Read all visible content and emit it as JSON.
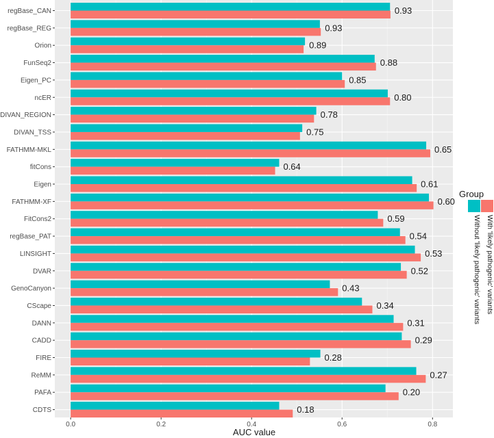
{
  "chart_data": {
    "type": "bar",
    "orientation": "horizontal",
    "title": "",
    "xlabel": "AUC value",
    "ylabel": "",
    "xlim": [
      -0.035,
      0.845
    ],
    "xticks": [
      0.0,
      0.2,
      0.4,
      0.6,
      0.8
    ],
    "xtick_labels": [
      "0.0",
      "0.2",
      "0.4",
      "0.6",
      "0.8"
    ],
    "grid": true,
    "legend": {
      "title": "Group",
      "placement": "right",
      "entries": [
        "Without 'likely pathogenic' variants",
        "With 'likely pathogenic' variants"
      ]
    },
    "series_colors": [
      "#00BFC4",
      "#F8766D"
    ],
    "categories": [
      "regBase_CAN",
      "regBase_REG",
      "Orion",
      "FunSeq2",
      "Eigen_PC",
      "ncER",
      "DIVAN_REGION",
      "DIVAN_TSS",
      "FATHMM-MKL",
      "fitCons",
      "Eigen",
      "FATHMM-XF",
      "FitCons2",
      "regBase_PAT",
      "LINSIGHT",
      "DVAR",
      "GenoCanyon",
      "CScape",
      "DANN",
      "CADD",
      "FIRE",
      "ReMM",
      "PAFA",
      "CDTS"
    ],
    "series": [
      {
        "name": "Without 'likely pathogenic' variants",
        "values": [
          0.706,
          0.551,
          0.518,
          0.672,
          0.6,
          0.701,
          0.543,
          0.512,
          0.786,
          0.461,
          0.755,
          0.792,
          0.679,
          0.728,
          0.761,
          0.73,
          0.573,
          0.644,
          0.714,
          0.732,
          0.552,
          0.764,
          0.696,
          0.461
        ]
      },
      {
        "name": "With 'likely pathogenic' variants",
        "values": [
          0.707,
          0.553,
          0.515,
          0.675,
          0.606,
          0.706,
          0.538,
          0.507,
          0.795,
          0.452,
          0.765,
          0.802,
          0.691,
          0.74,
          0.774,
          0.743,
          0.591,
          0.667,
          0.735,
          0.752,
          0.529,
          0.785,
          0.725,
          0.491
        ]
      }
    ],
    "annotations": [
      "0.93",
      "0.93",
      "0.89",
      "0.88",
      "0.85",
      "0.80",
      "0.78",
      "0.75",
      "0.65",
      "0.64",
      "0.61",
      "0.60",
      "0.59",
      "0.54",
      "0.53",
      "0.52",
      "0.43",
      "0.34",
      "0.31",
      "0.29",
      "0.28",
      "0.27",
      "0.20",
      "0.18"
    ]
  }
}
